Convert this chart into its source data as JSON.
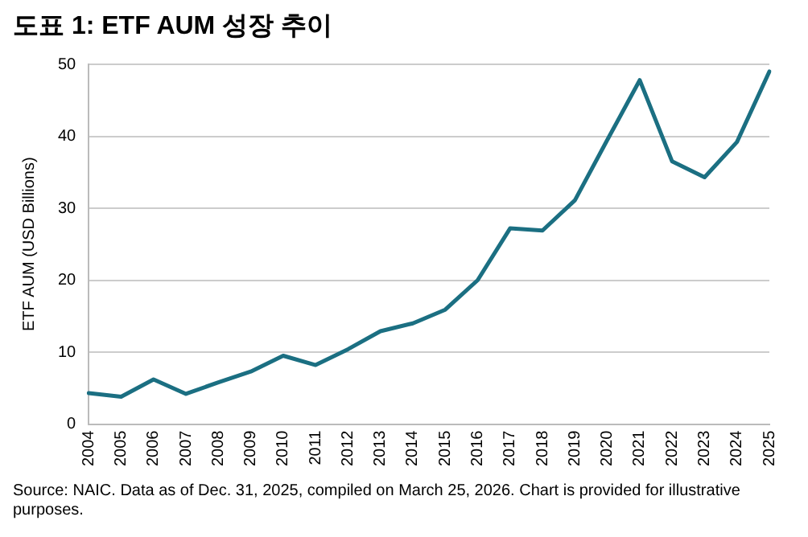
{
  "chart_data": {
    "type": "line",
    "title": "도표 1: ETF AUM 성장 추이",
    "ylabel": "ETF AUM (USD Billions)",
    "categories": [
      "2004",
      "2005",
      "2006",
      "2007",
      "2008",
      "2009",
      "2010",
      "2011",
      "2012",
      "2013",
      "2014",
      "2015",
      "2016",
      "2017",
      "2018",
      "2019",
      "2020",
      "2021",
      "2022",
      "2023",
      "2024",
      "2025"
    ],
    "series": [
      {
        "color": "#1b6f82",
        "values": [
          4.3,
          3.8,
          6.2,
          4.2,
          5.8,
          7.3,
          9.5,
          8.2,
          10.4,
          12.9,
          14.0,
          15.9,
          20.0,
          27.2,
          26.9,
          31.1,
          39.5,
          47.8,
          36.5,
          34.3,
          39.2,
          49.0
        ]
      }
    ],
    "ylim": [
      0,
      50
    ],
    "yticks": [
      0,
      10,
      20,
      30,
      40,
      50
    ],
    "grid": "y",
    "legend": false,
    "marker": "none",
    "line_style": "solid",
    "annotations": [
      "Source: NAIC.  Data as of Dec. 31, 2025, compiled on March 25, 2026.  Chart is provided for illustrative purposes."
    ]
  }
}
